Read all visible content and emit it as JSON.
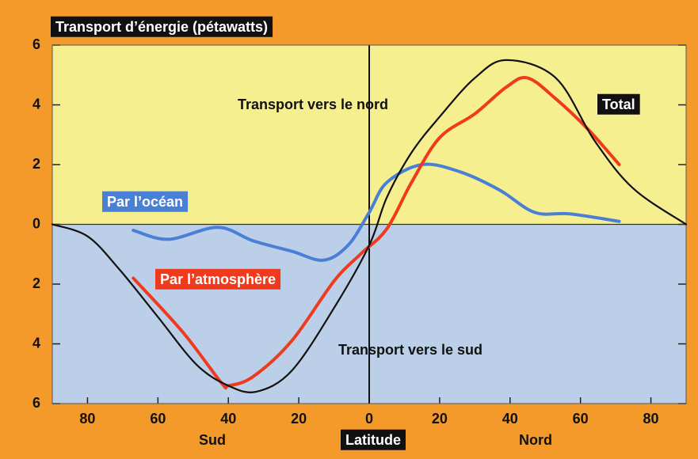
{
  "chart_data": {
    "type": "line",
    "title": "Transport d’énergie (pétawatts)",
    "xlabel": "Latitude",
    "annotations": [
      "Transport vers le nord",
      "Transport vers le sud",
      "Sud",
      "Nord"
    ],
    "xlim": [
      -90,
      90
    ],
    "ylim": [
      -6,
      6
    ],
    "xticks": [
      {
        "value": -80,
        "label": "80"
      },
      {
        "value": -60,
        "label": "60"
      },
      {
        "value": -40,
        "label": "40"
      },
      {
        "value": -20,
        "label": "20"
      },
      0,
      20,
      40,
      60,
      80
    ],
    "yticks": [
      {
        "value": -6,
        "label": "6"
      },
      {
        "value": -4,
        "label": "4"
      },
      {
        "value": -2,
        "label": "2"
      },
      0,
      2,
      4,
      6
    ],
    "series": [
      {
        "name": "Total",
        "color": "#111111",
        "x": [
          -90,
          -80,
          -71,
          -60,
          -49,
          -40,
          -32,
          -22,
          -10,
          0,
          5,
          12,
          20,
          30,
          39,
          53,
          64,
          75,
          90
        ],
        "values": [
          0,
          -0.4,
          -1.5,
          -3.1,
          -4.7,
          -5.4,
          -5.6,
          -4.9,
          -2.8,
          -0.7,
          0.9,
          2.4,
          3.6,
          4.9,
          5.5,
          4.9,
          2.8,
          1.2,
          0
        ]
      },
      {
        "name": "Par l’océan",
        "color": "#4a7fd6",
        "x": [
          -67,
          -57,
          -43,
          -33,
          -22,
          -13,
          -6,
          0,
          5,
          15,
          26,
          37,
          47,
          57,
          71
        ],
        "values": [
          -0.2,
          -0.5,
          -0.1,
          -0.55,
          -0.9,
          -1.2,
          -0.7,
          0.4,
          1.4,
          2.0,
          1.75,
          1.15,
          0.4,
          0.35,
          0.1
        ]
      },
      {
        "name": "Par l’atmosphère",
        "color": "#f03a1e",
        "x": [
          -67,
          -53,
          -42,
          -40,
          -33,
          -22,
          -10,
          -2.5,
          5,
          12,
          20,
          30,
          39,
          45,
          53,
          62,
          71
        ],
        "values": [
          -1.8,
          -3.6,
          -5.3,
          -5.4,
          -5.1,
          -3.9,
          -1.9,
          -1.0,
          -0.15,
          1.4,
          2.9,
          3.7,
          4.6,
          4.9,
          4.2,
          3.2,
          2.0
        ]
      }
    ]
  }
}
